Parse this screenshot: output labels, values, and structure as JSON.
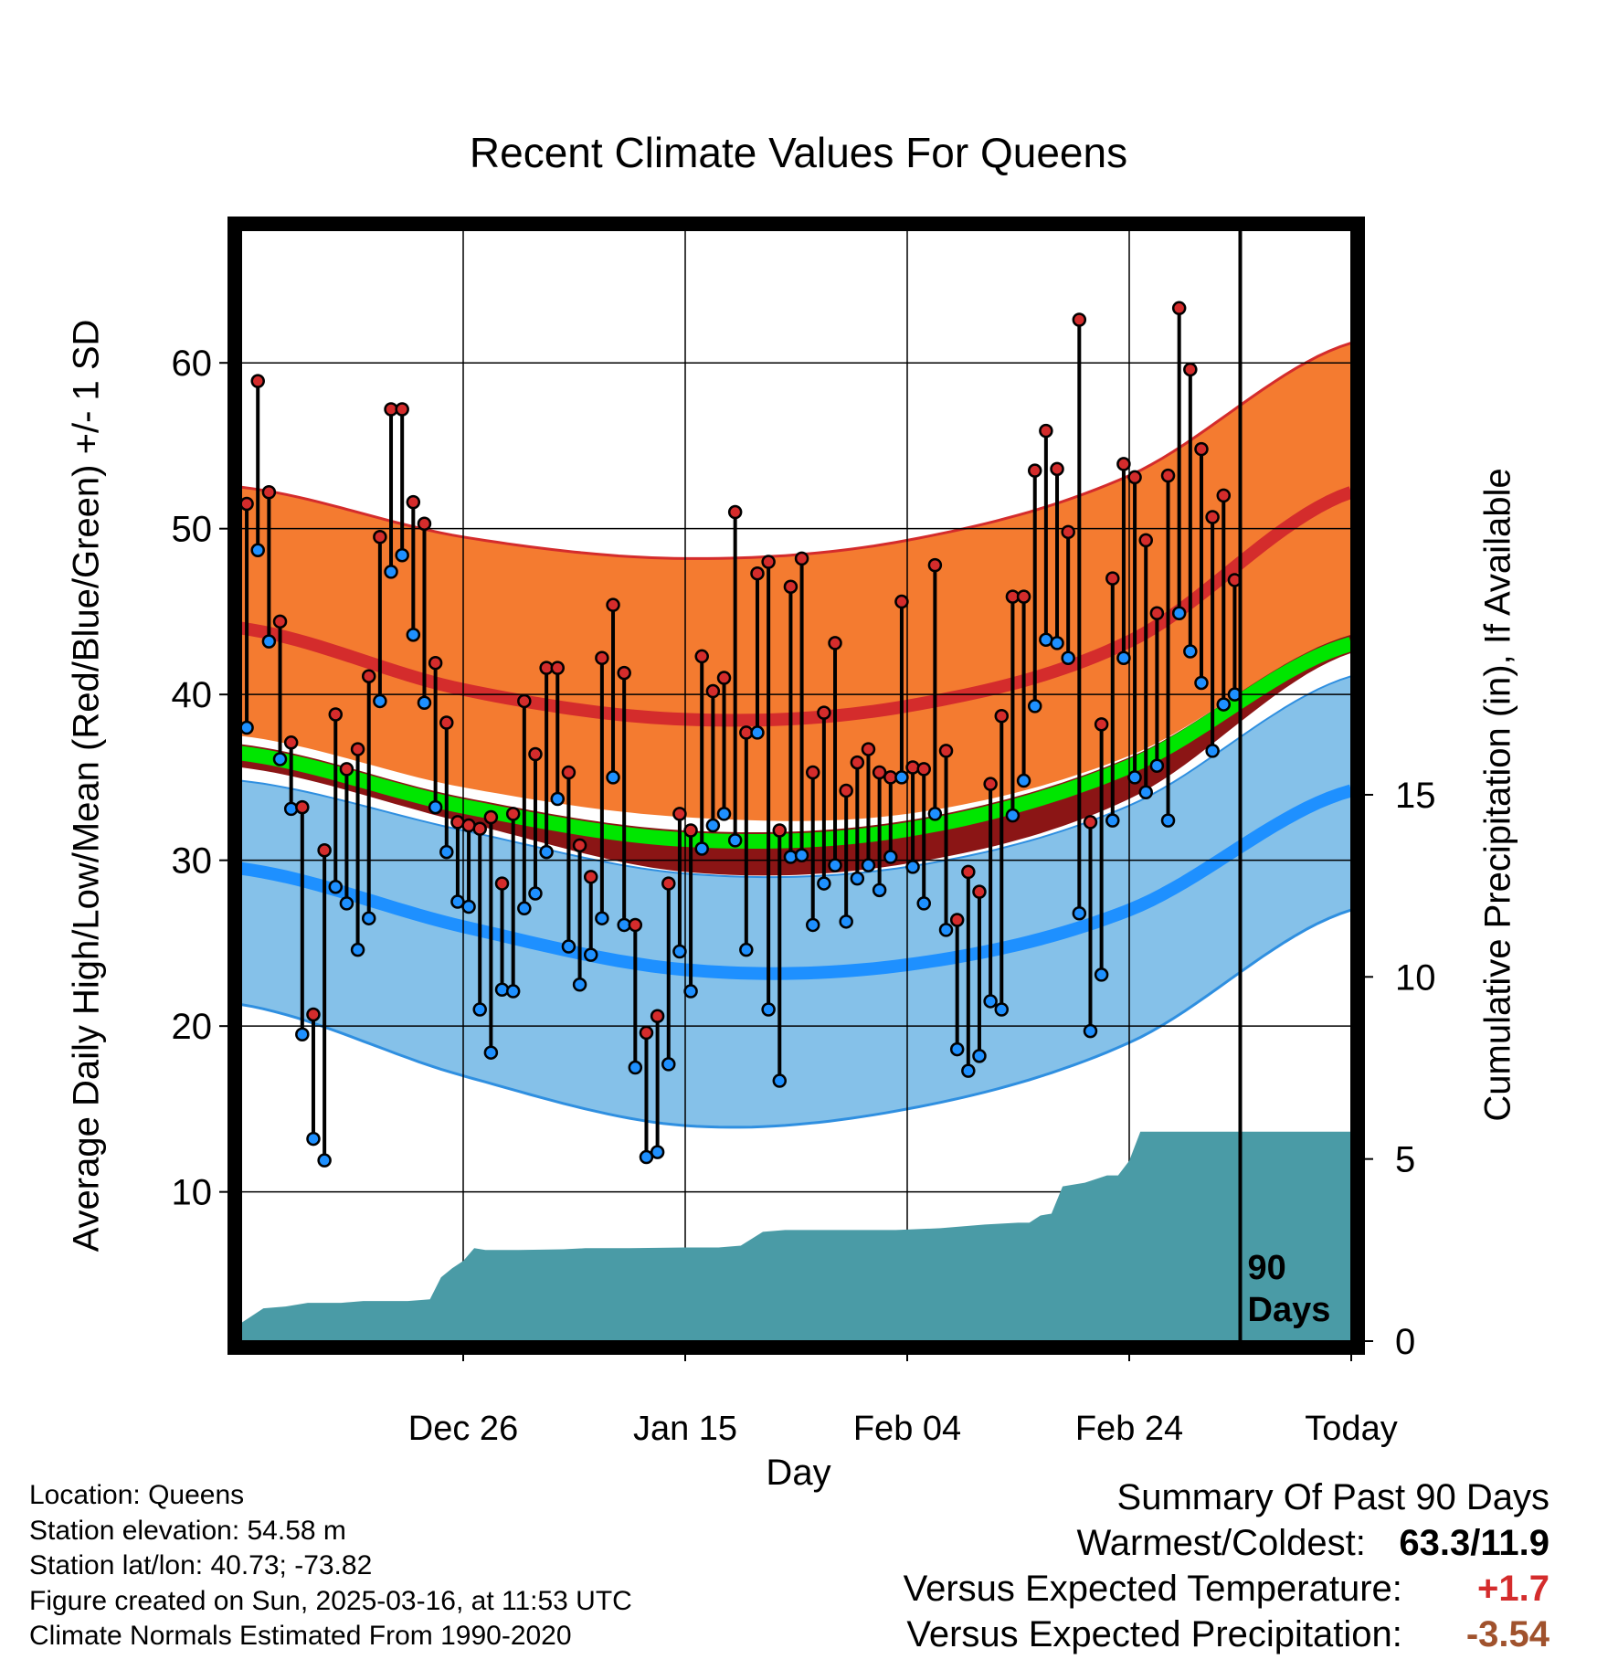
{
  "chart_data": {
    "type": "line",
    "title": "Recent Climate Values For Queens",
    "xlabel": "Day",
    "ylabel": "Average Daily High/Low/Mean (Red/Blue/Green) +/- 1 SD",
    "y2label": "Cumulative Precipitation (in), If Available",
    "x_ticks": [
      "Dec 26",
      "Jan 15",
      "Feb 04",
      "Feb 24",
      "Today"
    ],
    "x_range_days": [
      -90,
      10
    ],
    "ylim": [
      1,
      68
    ],
    "y_ticks": [
      10,
      20,
      30,
      40,
      50,
      60
    ],
    "y2lim": [
      0,
      30.5
    ],
    "y2_ticks": [
      0,
      5,
      10,
      15
    ],
    "grid": true,
    "today_marker_label": "90 Days",
    "colors": {
      "high_band": "#f47b30",
      "high_mean": "#d42c2c",
      "low_band": "#85c1e9",
      "low_mean": "#1e90ff",
      "mean_band": "#8b1515",
      "mean_line": "#00e600",
      "precip": "#4a9ba6",
      "frame": "#000000"
    },
    "normals_day_offsets": [
      -90,
      -70,
      -50,
      -30,
      -10,
      10
    ],
    "normal_high_mean": [
      44,
      40.3,
      38.5,
      39.3,
      43.2,
      52.2
    ],
    "normal_high_sd_upper": [
      52.5,
      49.5,
      48.2,
      49.3,
      53.2,
      61.2
    ],
    "normal_high_sd_lower": [
      37.5,
      34.4,
      32.6,
      32.8,
      36.3,
      43.5
    ],
    "normal_low_mean": [
      29.5,
      26.0,
      23.4,
      23.7,
      27.0,
      34.2
    ],
    "normal_low_sd_upper": [
      34.8,
      31.8,
      29.2,
      29.6,
      33.3,
      41.1
    ],
    "normal_low_sd_lower": [
      21.3,
      17.0,
      14.0,
      15.0,
      19.0,
      27.0
    ],
    "normal_mean_upper": [
      37.0,
      33.8,
      31.8,
      32.4,
      36.2,
      43.6
    ],
    "normal_mean_lower": [
      35.6,
      32.3,
      29.3,
      29.8,
      33.7,
      42.5
    ],
    "daily_high": [
      51.5,
      58.9,
      52.2,
      44.4,
      37.1,
      33.2,
      20.7,
      30.6,
      38.8,
      35.5,
      36.7,
      41.1,
      49.5,
      57.2,
      57.2,
      51.6,
      50.3,
      41.9,
      38.3,
      32.3,
      32.1,
      31.9,
      32.6,
      28.6,
      32.8,
      39.6,
      36.4,
      41.6,
      41.6,
      35.3,
      30.9,
      29.0,
      42.2,
      45.4,
      41.3,
      26.1,
      19.6,
      20.6,
      28.6,
      32.8,
      31.8,
      42.3,
      40.2,
      41.0,
      51.0,
      37.7,
      47.3,
      48.0,
      31.8,
      46.5,
      48.2,
      35.3,
      38.9,
      43.1,
      34.2,
      35.9,
      36.7,
      35.3,
      35.0,
      45.6,
      35.6,
      35.5,
      47.8,
      36.6,
      26.4,
      29.3,
      28.1,
      34.6,
      38.7,
      45.9,
      45.9,
      53.5,
      55.9,
      53.6,
      49.8,
      62.6,
      32.3,
      38.2,
      47.0,
      53.9,
      53.1,
      49.3,
      44.9,
      53.2,
      63.3,
      59.6,
      54.8,
      50.7,
      52.0,
      46.9
    ],
    "daily_low": [
      38.0,
      48.7,
      43.2,
      36.1,
      33.1,
      19.5,
      13.2,
      11.9,
      28.4,
      27.4,
      24.6,
      26.5,
      39.6,
      47.4,
      48.4,
      43.6,
      39.5,
      33.2,
      30.5,
      27.5,
      27.2,
      21.0,
      18.4,
      22.2,
      22.1,
      27.1,
      28.0,
      30.5,
      33.7,
      24.8,
      22.5,
      24.3,
      26.5,
      35.0,
      26.1,
      17.5,
      12.1,
      12.4,
      17.7,
      24.5,
      22.1,
      30.7,
      32.1,
      32.8,
      31.2,
      24.6,
      37.7,
      21.0,
      16.7,
      30.2,
      30.3,
      26.1,
      28.6,
      29.7,
      26.3,
      28.9,
      29.7,
      28.2,
      30.2,
      35.0,
      29.6,
      27.4,
      32.8,
      25.8,
      18.6,
      17.3,
      18.2,
      21.5,
      21.0,
      32.7,
      34.8,
      39.3,
      43.3,
      43.1,
      42.2,
      26.8,
      19.7,
      23.1,
      32.4,
      42.2,
      35.0,
      34.1,
      35.7,
      32.4,
      44.9,
      42.6,
      40.7,
      36.6,
      39.4,
      40.0
    ],
    "cumulative_precip_points": [
      [
        -90,
        0.35
      ],
      [
        -88,
        0.55
      ],
      [
        -86,
        0.75
      ],
      [
        -84,
        0.8
      ],
      [
        -83,
        0.85
      ],
      [
        -81,
        0.95
      ],
      [
        -79,
        0.95
      ],
      [
        -77,
        1.0
      ],
      [
        -75,
        1.0
      ],
      [
        -73,
        1.05
      ],
      [
        -72,
        1.5
      ],
      [
        -71,
        1.75
      ],
      [
        -70,
        2.0
      ],
      [
        -69,
        2.25
      ],
      [
        -68,
        2.5
      ],
      [
        -67,
        2.6
      ],
      [
        -65,
        2.6
      ],
      [
        -63,
        2.6
      ],
      [
        -61,
        2.62
      ],
      [
        -59,
        2.65
      ],
      [
        -57,
        2.7
      ],
      [
        -55,
        2.7
      ],
      [
        -51,
        2.7
      ],
      [
        -47,
        2.7
      ],
      [
        -43,
        2.72
      ],
      [
        -41,
        2.72
      ],
      [
        -39,
        2.9
      ],
      [
        -38,
        3.2
      ],
      [
        -37,
        3.5
      ],
      [
        -35,
        3.55
      ],
      [
        -31,
        3.55
      ],
      [
        -27,
        3.57
      ],
      [
        -23,
        3.6
      ],
      [
        -21,
        3.75
      ],
      [
        -19,
        3.85
      ],
      [
        -17,
        3.9
      ],
      [
        -15,
        3.95
      ],
      [
        -14,
        4.1
      ],
      [
        -13,
        4.3
      ],
      [
        -12,
        4.45
      ],
      [
        -11,
        4.85
      ],
      [
        -9,
        5.0
      ],
      [
        -7,
        5.05
      ],
      [
        -5,
        5.2
      ],
      [
        -4,
        5.5
      ],
      [
        -3,
        5.6
      ],
      [
        -2,
        5.8
      ],
      [
        -1,
        6.4
      ],
      [
        0,
        6.4
      ],
      [
        2,
        6.4
      ],
      [
        4,
        6.4
      ],
      [
        6,
        6.4
      ],
      [
        8,
        6.4
      ],
      [
        10,
        6.4
      ]
    ],
    "today_offset": 0
  },
  "precip_steps": [
    [
      -90,
      0.5
    ],
    [
      -88,
      0.9
    ],
    [
      -86,
      0.95
    ],
    [
      -84,
      1.05
    ],
    [
      -81,
      1.05
    ],
    [
      -79,
      1.1
    ],
    [
      -77,
      1.1
    ],
    [
      -75,
      1.1
    ],
    [
      -73,
      1.15
    ],
    [
      -72,
      1.75
    ],
    [
      -71,
      2.0
    ],
    [
      -70,
      2.2
    ],
    [
      -69,
      2.55
    ],
    [
      -68,
      2.5
    ],
    [
      -65,
      2.5
    ],
    [
      -61,
      2.52
    ],
    [
      -59,
      2.55
    ],
    [
      -55,
      2.55
    ],
    [
      -50,
      2.57
    ],
    [
      -47,
      2.57
    ],
    [
      -45,
      2.62
    ],
    [
      -43,
      3.0
    ],
    [
      -41,
      3.05
    ],
    [
      -39,
      3.05
    ],
    [
      -35,
      3.05
    ],
    [
      -31,
      3.05
    ],
    [
      -27,
      3.1
    ],
    [
      -23,
      3.2
    ],
    [
      -20,
      3.25
    ],
    [
      -19,
      3.25
    ],
    [
      -18,
      3.45
    ],
    [
      -17,
      3.5
    ],
    [
      -16,
      4.25
    ],
    [
      -14,
      4.35
    ],
    [
      -12,
      4.55
    ],
    [
      -11,
      4.55
    ],
    [
      -10,
      4.95
    ],
    [
      -9,
      5.75
    ],
    [
      -8,
      5.75
    ],
    [
      -6,
      5.75
    ],
    [
      -5,
      5.75
    ],
    [
      -4,
      5.75
    ],
    [
      -3,
      5.75
    ],
    [
      -2,
      5.75
    ],
    [
      -1,
      5.75
    ],
    [
      0,
      5.75
    ],
    [
      2,
      5.75
    ],
    [
      4,
      5.75
    ],
    [
      6,
      5.75
    ],
    [
      8,
      5.75
    ],
    [
      10,
      5.75
    ]
  ],
  "info": {
    "location": "Location: Queens",
    "elevation": "Station elevation: 54.58 m",
    "latlon": "Station lat/lon: 40.73; -73.82",
    "created": "Figure created on Sun, 2025-03-16, at 11:53 UTC",
    "normals": "Climate Normals Estimated From 1990-2020"
  },
  "summary": {
    "heading": "Summary Of Past 90 Days",
    "warm_cold_label": "Warmest/Coldest:",
    "warm_cold_value": "63.3/11.9",
    "temp_label": "Versus Expected Temperature:",
    "temp_value": "+1.7",
    "precip_label": "Versus Expected Precipitation:",
    "precip_value": "-3.54"
  }
}
